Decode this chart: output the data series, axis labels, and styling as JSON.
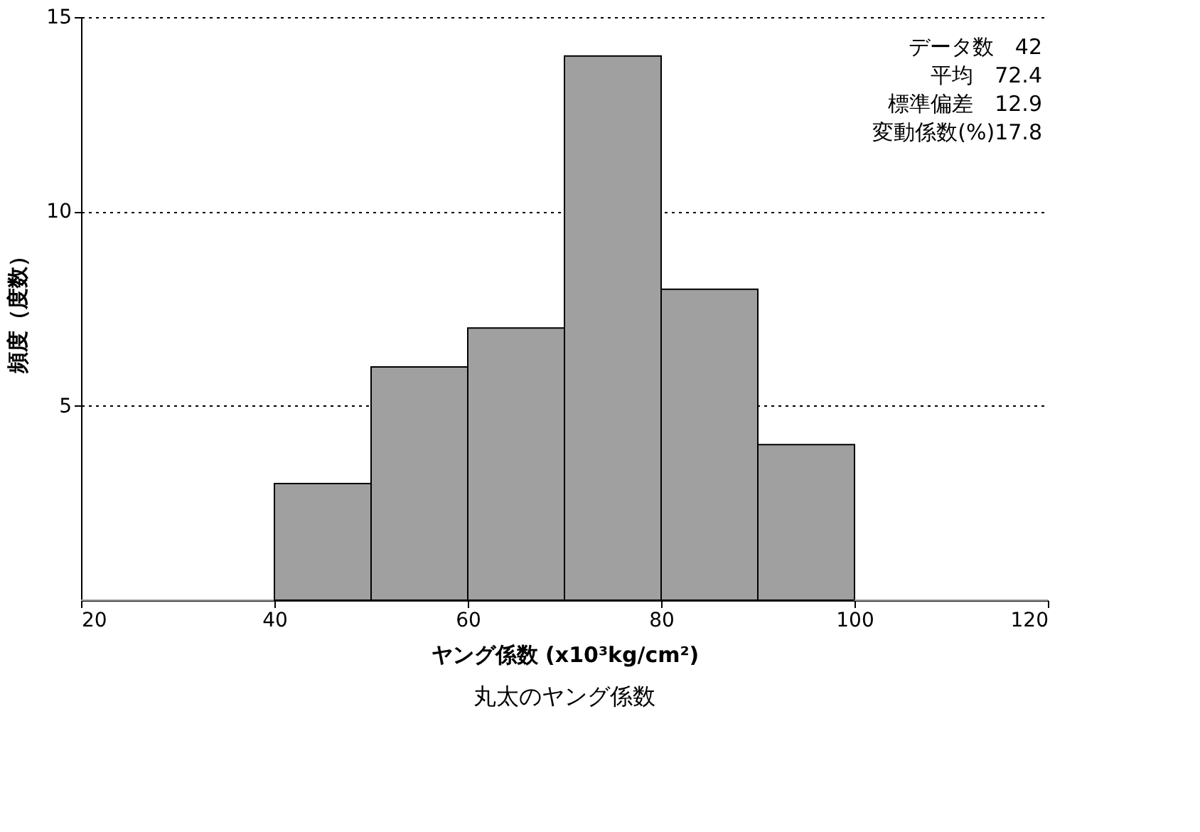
{
  "chart_data": {
    "type": "histogram",
    "title": "丸太のヤング係数",
    "xlabel": "ヤング係数 (x10³kg/cm²)",
    "ylabel": "頻度（度数）",
    "bins": [
      20,
      30,
      40,
      50,
      60,
      70,
      80,
      90,
      100,
      110,
      120
    ],
    "values": [
      0,
      0,
      3,
      6,
      7,
      14,
      8,
      4,
      0,
      0
    ],
    "color": "#a0a0a0",
    "xlim": [
      20,
      120
    ],
    "xticks": [
      20,
      40,
      60,
      80,
      100,
      120
    ],
    "ylim": [
      0,
      15
    ],
    "yticks": [
      5,
      10,
      15
    ],
    "grid": "y",
    "line_style": "dotted",
    "annotations": [
      "データ数　42",
      "平均　72.4",
      "標準偏差　12.9",
      "変動係数(%)17.8"
    ]
  }
}
